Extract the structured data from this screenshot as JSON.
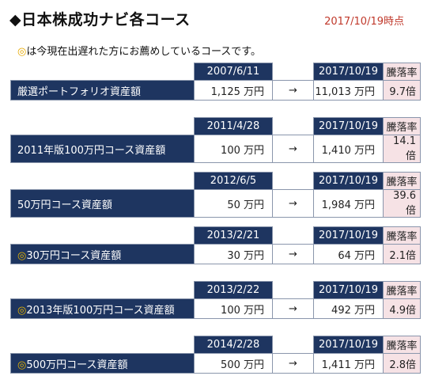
{
  "header": {
    "title": "◆日本株成功ナビ各コース",
    "as_of": "2017/10/19時点"
  },
  "note": {
    "symbol": "◎",
    "text": "は今現在出遅れた方にお薦めしているコースです。"
  },
  "rate_header": "騰落率",
  "arrow": "→",
  "courses": [
    {
      "marked": false,
      "name": "厳選ポートフォリオ資産額",
      "start_date": "2007/6/11",
      "start_value": "1,125 万円",
      "end_date": "2017/10/19",
      "end_value": "11,013 万円",
      "rate": "9.7倍"
    },
    {
      "marked": false,
      "name": "2011年版100万円コース資産額",
      "start_date": "2011/4/28",
      "start_value": "100 万円",
      "end_date": "2017/10/19",
      "end_value": "1,410 万円",
      "rate": "14.1倍"
    },
    {
      "marked": false,
      "name": "50万円コース資産額",
      "start_date": "2012/6/5",
      "start_value": "50 万円",
      "end_date": "2017/10/19",
      "end_value": "1,984 万円",
      "rate": "39.6倍"
    },
    {
      "marked": true,
      "name": "30万円コース資産額",
      "start_date": "2013/2/21",
      "start_value": "30 万円",
      "end_date": "2017/10/19",
      "end_value": "64 万円",
      "rate": "2.1倍"
    },
    {
      "marked": true,
      "name": "2013年版100万円コース資産額",
      "start_date": "2013/2/22",
      "start_value": "100 万円",
      "end_date": "2017/10/19",
      "end_value": "492 万円",
      "rate": "4.9倍"
    },
    {
      "marked": true,
      "name": "500万円コース資産額",
      "start_date": "2014/2/28",
      "start_value": "500 万円",
      "end_date": "2017/10/19",
      "end_value": "1,411 万円",
      "rate": "2.8倍"
    }
  ]
}
